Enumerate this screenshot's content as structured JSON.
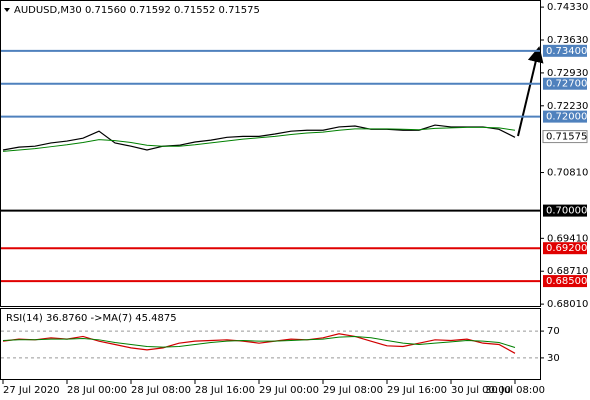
{
  "chart_data": [
    {
      "type": "line",
      "title": "AUDUSD,M30  0.71560 0.71592 0.71552 0.71575",
      "categories": [
        "27 Jul 2020",
        null,
        null,
        null,
        "28 Jul 00:00",
        null,
        null,
        null,
        "28 Jul 08:00",
        null,
        null,
        null,
        "28 Jul 16:00",
        null,
        null,
        null,
        "29 Jul 00:00",
        null,
        null,
        null,
        "29 Jul 08:00",
        null,
        null,
        null,
        "29 Jul 16:00",
        null,
        null,
        null,
        "30 Jul 00:00",
        null,
        null,
        null,
        "30 Jul 08:00"
      ],
      "series": [
        {
          "color": "#000000",
          "values": [
            0.7129,
            0.7135,
            0.7137,
            0.7144,
            0.7148,
            0.7154,
            0.7169,
            0.7144,
            0.7137,
            0.7129,
            0.7137,
            0.7139,
            0.7146,
            0.715,
            0.7156,
            0.7158,
            0.7158,
            0.7163,
            0.7169,
            0.7171,
            0.7171,
            0.7178,
            0.718,
            0.7173,
            0.7173,
            0.7171,
            0.7171,
            0.7182,
            0.7178,
            0.7178,
            0.7178,
            0.7173,
            0.7156
          ]
        },
        {
          "color": "#008000",
          "values": [
            0.7126,
            0.7129,
            0.7132,
            0.7136,
            0.714,
            0.7145,
            0.7151,
            0.7149,
            0.7145,
            0.7139,
            0.7137,
            0.7137,
            0.714,
            0.7144,
            0.7148,
            0.7152,
            0.7155,
            0.7158,
            0.7162,
            0.7165,
            0.7167,
            0.7171,
            0.7174,
            0.7174,
            0.7174,
            0.7173,
            0.7172,
            0.7175,
            0.7176,
            0.7177,
            0.7177,
            0.7176,
            0.7171
          ]
        }
      ],
      "ylim": [
        0.6797,
        0.7446
      ],
      "yticks": [
        {
          "value": 0.7433,
          "label": "0.74330"
        },
        {
          "value": 0.7363,
          "label": "0.73630"
        },
        {
          "value": 0.7293,
          "label": "0.72930"
        },
        {
          "value": 0.7223,
          "label": "0.72230"
        },
        {
          "value": 0.7081,
          "label": "0.70810"
        },
        {
          "value": 0.6941,
          "label": "0.69410"
        },
        {
          "value": 0.6871,
          "label": "0.68710"
        },
        {
          "value": 0.6801,
          "label": "0.68010"
        }
      ],
      "levels": [
        {
          "value": 0.734,
          "label": "0.73400",
          "color": "#4f81bd"
        },
        {
          "value": 0.727,
          "label": "0.72700",
          "color": "#4f81bd"
        },
        {
          "value": 0.72,
          "label": "0.72000",
          "color": "#4f81bd"
        },
        {
          "value": 0.7,
          "label": "0.70000",
          "color": "#000000"
        },
        {
          "value": 0.692,
          "label": "0.69200",
          "color": "#e00000"
        },
        {
          "value": 0.685,
          "label": "0.68500",
          "color": "#e00000"
        }
      ],
      "last_price": {
        "value": 0.71575,
        "label": "0.71575"
      }
    },
    {
      "type": "line",
      "title": "RSI(14) 36.8760 ->MA(7) 45.4875",
      "series": [
        {
          "color": "#d00000",
          "values": [
            55,
            58,
            57,
            60,
            58,
            62,
            55,
            50,
            45,
            42,
            45,
            52,
            55,
            56,
            57,
            55,
            52,
            55,
            58,
            57,
            60,
            66,
            62,
            55,
            48,
            47,
            52,
            57,
            56,
            58,
            52,
            50,
            36.876
          ]
        },
        {
          "color": "#008000",
          "values": [
            56,
            57,
            57,
            58,
            58,
            59,
            57,
            53,
            50,
            47,
            46,
            47,
            50,
            53,
            55,
            56,
            55,
            55,
            56,
            57,
            58,
            61,
            62,
            60,
            56,
            52,
            50,
            52,
            54,
            56,
            55,
            53,
            45.4875
          ]
        }
      ],
      "ylim": [
        0,
        100
      ],
      "yticks": [
        30,
        70
      ]
    }
  ]
}
